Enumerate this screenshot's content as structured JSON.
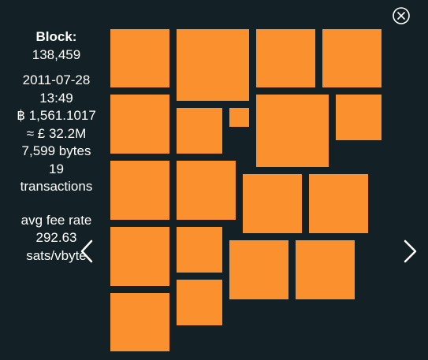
{
  "block": {
    "label": "Block:",
    "height": "138,459",
    "date": "2011-07-28",
    "time": "13:49",
    "value_btc": "฿ 1,561.1017",
    "value_fiat": "≈ £ 32.2M",
    "size": "7,599 bytes",
    "tx_count": "19",
    "tx_label": "transactions",
    "fee_label": "avg fee rate",
    "fee_value": "292.63",
    "fee_unit": "sats/vbyte"
  },
  "icons": {
    "close": "close-circle-icon",
    "prev": "chevron-left-icon",
    "next": "chevron-right-icon"
  },
  "colors": {
    "background": "#132126",
    "transaction": "#fb902e",
    "text": "#ffffff"
  },
  "transactions_count": 19
}
